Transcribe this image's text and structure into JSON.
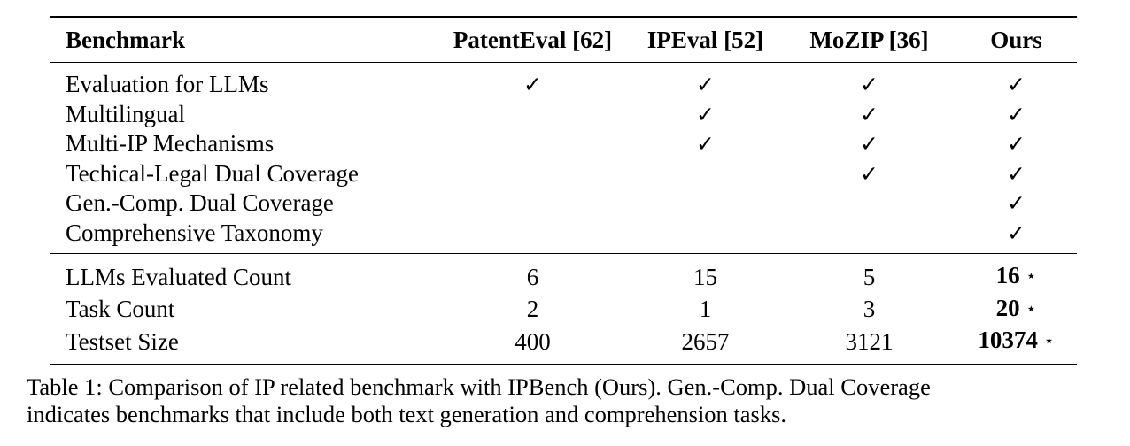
{
  "table": {
    "headers": [
      "Benchmark",
      "PatentEval [62]",
      "IPEval [52]",
      "MoZIP [36]",
      "Ours"
    ],
    "feature_rows": [
      {
        "label": "Evaluation for LLMs",
        "cells": [
          "✓",
          "✓",
          "✓",
          "✓"
        ]
      },
      {
        "label": "Multilingual",
        "cells": [
          "",
          "✓",
          "✓",
          "✓"
        ]
      },
      {
        "label": "Multi-IP Mechanisms",
        "cells": [
          "",
          "✓",
          "✓",
          "✓"
        ]
      },
      {
        "label": "Techical-Legal Dual Coverage",
        "cells": [
          "",
          "",
          "✓",
          "✓"
        ]
      },
      {
        "label": "Gen.-Comp. Dual Coverage",
        "cells": [
          "",
          "",
          "",
          "✓"
        ]
      },
      {
        "label": "Comprehensive Taxonomy",
        "cells": [
          "",
          "",
          "",
          "✓"
        ]
      }
    ],
    "count_rows": [
      {
        "label": "LLMs Evaluated Count",
        "cells": [
          "6",
          "15",
          "5"
        ],
        "ours": "16",
        "ours_mark": "⋆"
      },
      {
        "label": "Task Count",
        "cells": [
          "2",
          "1",
          "3"
        ],
        "ours": "20",
        "ours_mark": "⋆"
      },
      {
        "label": "Testset Size",
        "cells": [
          "400",
          "2657",
          "3121"
        ],
        "ours": "10374",
        "ours_mark": "⋆"
      }
    ]
  },
  "caption": {
    "line1": "Table 1: Comparison of IP related benchmark with IPBench (Ours). Gen.-Comp. Dual Coverage",
    "line2": "indicates benchmarks that include both text generation and comprehension tasks."
  }
}
